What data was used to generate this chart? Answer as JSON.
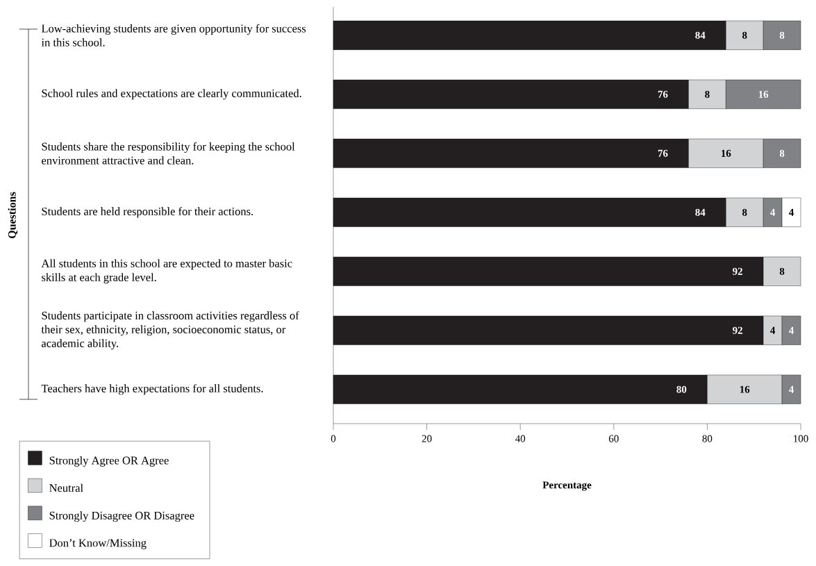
{
  "chart_data": {
    "type": "bar",
    "orientation": "horizontal",
    "stacked": true,
    "xlabel": "Percentage",
    "ylabel": "Questions",
    "categories": [
      "Low-achieving students are given opportunity for success in this school.",
      "School rules and expectations are clearly communicated.",
      "Students share the responsibility for keeping the school environment attractive and clean.",
      "Students are held responsible for their actions.",
      "All students in this school are expected to master basic skills at each grade level.",
      "Students participate in classroom activities regardless of their sex, ethnicity, religion, socioeconomic status, or academic ability.",
      "Teachers have high expectations for all students."
    ],
    "series": [
      {
        "name": "Strongly Agree OR Agree",
        "color": "#231f20",
        "values": [
          84,
          76,
          76,
          84,
          92,
          92,
          80
        ]
      },
      {
        "name": "Neutral",
        "color": "#d1d3d4",
        "values": [
          8,
          8,
          16,
          8,
          8,
          4,
          16
        ]
      },
      {
        "name": "Strongly Disagree OR Disagree",
        "color": "#808285",
        "values": [
          8,
          16,
          8,
          4,
          null,
          4,
          4
        ]
      },
      {
        "name": "Don’t Know/Missing",
        "color": "#ffffff",
        "values": [
          null,
          null,
          null,
          4,
          null,
          null,
          null
        ]
      }
    ],
    "xlim": [
      0,
      100
    ],
    "xticks": [
      0,
      20,
      40,
      60,
      80,
      100
    ],
    "data_labels": true,
    "legend": "bottom left",
    "grid": false
  }
}
